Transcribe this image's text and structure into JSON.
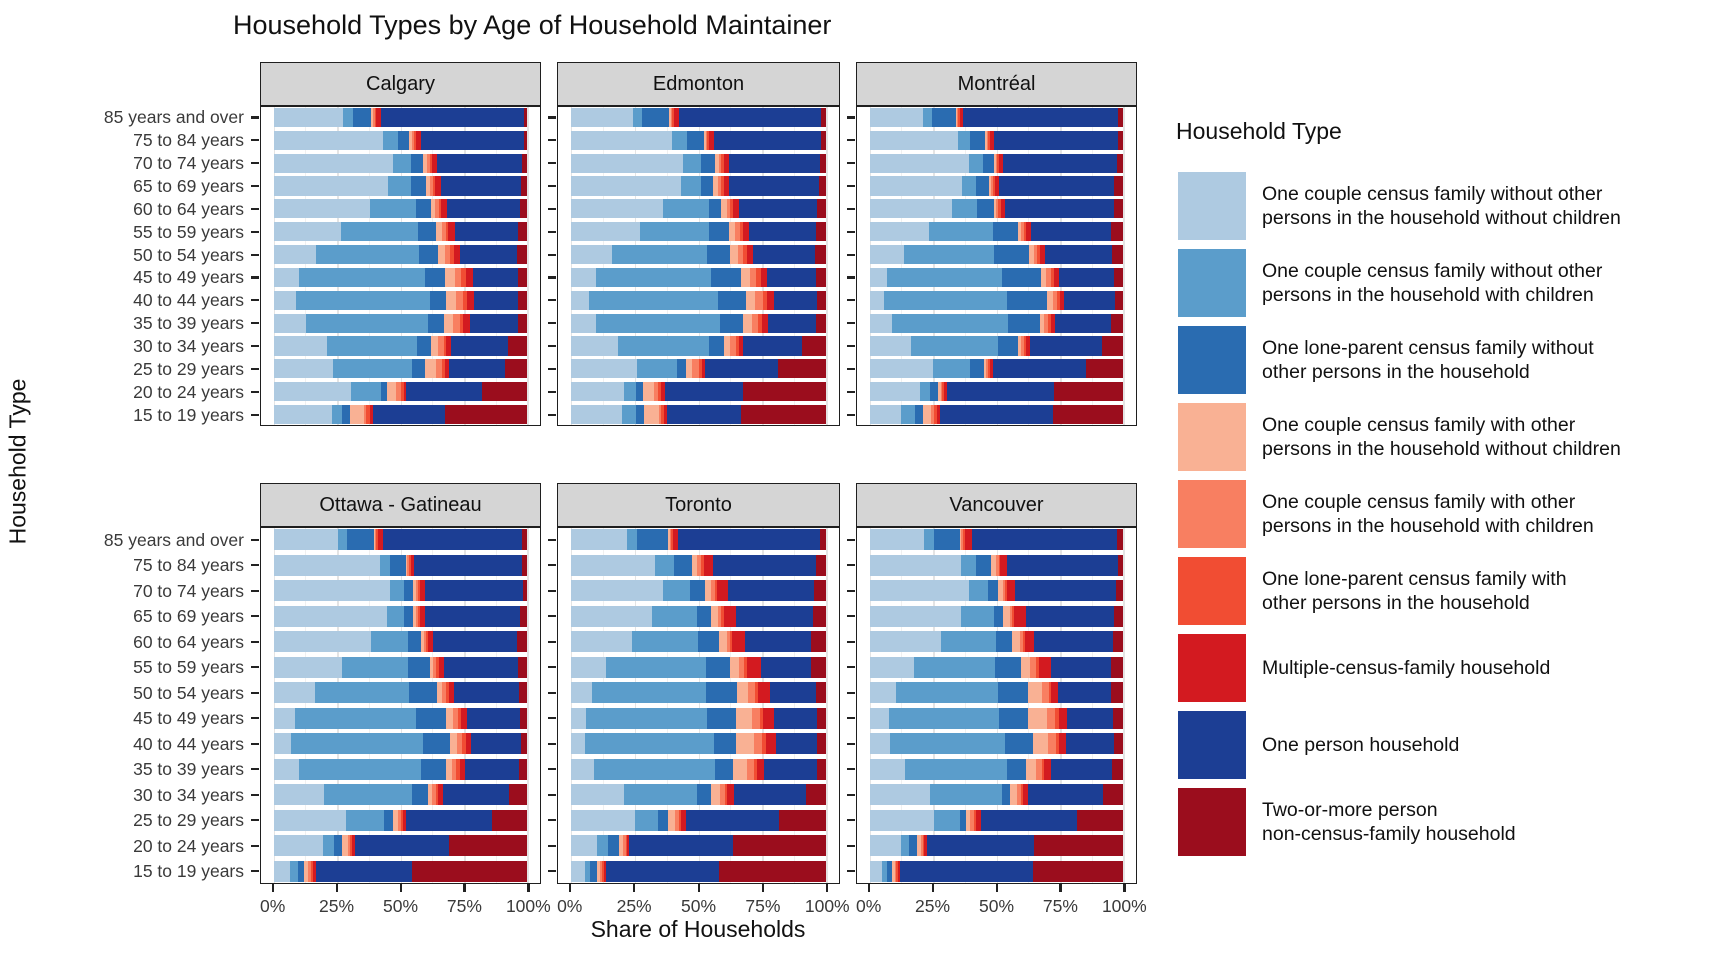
{
  "title": "Household Types by Age of Household Maintainer",
  "axes": {
    "x_label": "Share of Households",
    "y_label": "Household Type",
    "x_ticks": [
      "0%",
      "25%",
      "50%",
      "75%",
      "100%"
    ]
  },
  "legend": {
    "title": "Household Type",
    "entries": [
      {
        "label": "One couple census family without other\npersons in the household without children",
        "color": "#aecae1"
      },
      {
        "label": "One couple census family without other\npersons in the household with children",
        "color": "#5b9dcb"
      },
      {
        "label": "One lone-parent census family without\nother persons in the household",
        "color": "#2a6cb1"
      },
      {
        "label": "One couple census family with other\npersons in the household without children",
        "color": "#f9b194"
      },
      {
        "label": "One couple census family with other\npersons in the household with children",
        "color": "#f87f61"
      },
      {
        "label": "One lone-parent census family with\nother persons in the household",
        "color": "#f14d33"
      },
      {
        "label": "Multiple-census-family household",
        "color": "#d31a20"
      },
      {
        "label": "One person household",
        "color": "#1c3e94"
      },
      {
        "label": "Two-or-more person\nnon-census-family household",
        "color": "#9b0d1d"
      }
    ]
  },
  "chart_data": {
    "type": "bar",
    "stacked": true,
    "orientation": "horizontal",
    "unit": "percent of households (each bar sums to 100)",
    "xlim": [
      0,
      100
    ],
    "grid": "vertical major at 0/25/50/75/100, minor at 12.5 steps",
    "legend_position": "right",
    "facet_grid": [
      [
        "Calgary",
        "Edmonton",
        "Montréal"
      ],
      [
        "Ottawa - Gatineau",
        "Toronto",
        "Vancouver"
      ]
    ],
    "age_groups": [
      "85 years and over",
      "75 to 84 years",
      "70 to 74 years",
      "65 to 69 years",
      "60 to 64 years",
      "55 to 59 years",
      "50 to 54 years",
      "45 to 49 years",
      "40 to 44 years",
      "35 to 39 years",
      "30 to 34 years",
      "25 to 29 years",
      "20 to 24 years",
      "15 to 19 years"
    ],
    "series_names": [
      "One couple census family without other persons in the household without children",
      "One couple census family without other persons in the household with children",
      "One lone-parent census family without other persons in the household",
      "One couple census family with other persons in the household without children",
      "One couple census family with other persons in the household with children",
      "One lone-parent census family with other persons in the household",
      "Multiple-census-family household",
      "One person household",
      "Two-or-more person non-census-family household"
    ],
    "values": {
      "Calgary": [
        [
          27.5,
          3.7,
          7.3,
          0.7,
          0.6,
          0.7,
          2.0,
          56.0,
          1.5
        ],
        [
          43.0,
          6.0,
          4.5,
          1.0,
          0.8,
          0.7,
          2.0,
          40.5,
          1.5
        ],
        [
          47.0,
          7.0,
          5.0,
          1.5,
          1.0,
          0.8,
          2.0,
          33.7,
          2.0
        ],
        [
          45.0,
          9.0,
          6.0,
          1.5,
          1.2,
          0.9,
          2.2,
          31.7,
          2.5
        ],
        [
          38.0,
          18.0,
          6.0,
          1.8,
          1.3,
          0.9,
          2.3,
          28.7,
          3.0
        ],
        [
          26.5,
          30.5,
          7.0,
          2.2,
          1.7,
          1.0,
          2.6,
          24.7,
          3.8
        ],
        [
          16.8,
          40.5,
          7.5,
          2.6,
          2.2,
          1.3,
          2.6,
          22.4,
          4.1
        ],
        [
          10.0,
          49.5,
          8.0,
          3.9,
          2.6,
          1.7,
          2.8,
          17.7,
          3.8
        ],
        [
          9.0,
          52.5,
          6.5,
          3.9,
          2.8,
          1.7,
          2.6,
          17.5,
          3.5
        ],
        [
          12.7,
          48.2,
          6.4,
          3.5,
          2.5,
          1.5,
          2.5,
          19.2,
          3.5
        ],
        [
          21.0,
          35.4,
          5.8,
          2.6,
          2.2,
          1.0,
          1.9,
          22.5,
          7.6
        ],
        [
          23.6,
          31.1,
          5.1,
          4.2,
          2.3,
          1.3,
          1.5,
          22.2,
          8.7
        ],
        [
          30.7,
          11.6,
          2.5,
          3.5,
          1.9,
          1.1,
          1.0,
          29.8,
          17.9
        ],
        [
          23.0,
          4.0,
          3.0,
          5.5,
          1.0,
          1.5,
          1.0,
          28.6,
          32.4
        ]
      ],
      "Edmonton": [
        [
          24.5,
          3.5,
          10.5,
          0.7,
          0.6,
          0.7,
          2.0,
          55.5,
          2.0
        ],
        [
          39.5,
          6.0,
          6.5,
          0.8,
          0.7,
          0.8,
          1.7,
          42.0,
          2.0
        ],
        [
          44.0,
          7.0,
          5.5,
          1.5,
          1.0,
          1.0,
          2.0,
          35.5,
          2.5
        ],
        [
          43.0,
          8.0,
          4.5,
          2.0,
          1.5,
          1.0,
          2.0,
          35.0,
          3.0
        ],
        [
          36.0,
          18.0,
          5.0,
          2.0,
          1.5,
          1.2,
          2.3,
          30.5,
          3.5
        ],
        [
          27.0,
          27.0,
          8.0,
          2.3,
          1.8,
          1.2,
          2.5,
          26.2,
          4.0
        ],
        [
          16.0,
          37.5,
          9.0,
          2.8,
          2.2,
          1.4,
          2.6,
          24.0,
          4.5
        ],
        [
          10.0,
          45.0,
          11.5,
          3.5,
          2.7,
          1.6,
          2.7,
          19.0,
          4.0
        ],
        [
          7.0,
          50.5,
          11.0,
          3.8,
          2.9,
          1.7,
          2.6,
          17.0,
          3.5
        ],
        [
          10.0,
          48.5,
          9.0,
          3.3,
          2.5,
          1.5,
          2.2,
          19.0,
          4.0
        ],
        [
          18.5,
          35.5,
          6.0,
          2.5,
          2.0,
          1.2,
          1.8,
          23.0,
          9.5
        ],
        [
          26.0,
          15.5,
          3.5,
          2.6,
          2.5,
          1.2,
          1.4,
          28.4,
          18.9
        ],
        [
          21.0,
          4.5,
          3.0,
          4.0,
          1.8,
          1.2,
          1.3,
          30.5,
          32.7
        ],
        [
          20.0,
          5.5,
          3.0,
          6.0,
          1.0,
          1.2,
          1.0,
          29.0,
          33.3
        ]
      ],
      "Montréal": [
        [
          21.0,
          3.5,
          9.5,
          0.5,
          0.5,
          0.6,
          1.4,
          61.0,
          2.0
        ],
        [
          35.0,
          4.5,
          6.0,
          0.6,
          0.5,
          0.7,
          1.7,
          49.0,
          2.0
        ],
        [
          39.0,
          5.5,
          4.5,
          0.7,
          0.6,
          0.7,
          1.6,
          45.0,
          2.4
        ],
        [
          36.5,
          5.5,
          5.0,
          0.8,
          0.7,
          0.8,
          1.7,
          45.5,
          3.5
        ],
        [
          32.5,
          10.0,
          6.5,
          1.0,
          0.8,
          0.9,
          1.8,
          43.0,
          3.5
        ],
        [
          23.5,
          25.0,
          10.0,
          1.3,
          1.0,
          1.0,
          2.0,
          31.5,
          4.7
        ],
        [
          13.5,
          35.5,
          14.0,
          1.6,
          1.3,
          1.1,
          2.0,
          26.5,
          4.5
        ],
        [
          7.0,
          45.0,
          15.5,
          2.2,
          1.8,
          1.3,
          2.0,
          21.5,
          3.7
        ],
        [
          5.5,
          48.5,
          16.0,
          2.1,
          1.7,
          1.2,
          1.8,
          20.0,
          3.2
        ],
        [
          9.0,
          45.5,
          12.5,
          1.8,
          1.5,
          1.1,
          1.7,
          22.0,
          4.9
        ],
        [
          16.5,
          34.0,
          8.0,
          1.2,
          1.0,
          0.9,
          1.5,
          28.5,
          8.4
        ],
        [
          25.0,
          14.5,
          5.5,
          0.9,
          0.8,
          0.8,
          1.2,
          36.5,
          14.8
        ],
        [
          20.0,
          4.0,
          3.0,
          1.0,
          0.7,
          0.8,
          1.0,
          42.0,
          27.5
        ],
        [
          12.5,
          5.5,
          3.0,
          3.3,
          1.1,
          1.2,
          1.0,
          44.7,
          27.7
        ]
      ],
      "Ottawa - Gatineau": [
        [
          25.5,
          3.5,
          10.5,
          0.5,
          0.5,
          0.6,
          1.9,
          55.0,
          2.0
        ],
        [
          42.0,
          4.0,
          6.0,
          0.7,
          0.6,
          0.7,
          1.5,
          42.5,
          2.0
        ],
        [
          46.0,
          5.5,
          3.5,
          1.0,
          0.8,
          0.8,
          2.0,
          38.5,
          1.9
        ],
        [
          44.5,
          7.0,
          3.5,
          1.0,
          0.8,
          0.8,
          2.0,
          37.5,
          2.9
        ],
        [
          38.5,
          14.5,
          5.0,
          1.1,
          0.9,
          0.9,
          2.1,
          33.0,
          4.0
        ],
        [
          27.0,
          26.0,
          8.5,
          1.4,
          1.1,
          1.0,
          2.0,
          29.2,
          3.8
        ],
        [
          16.5,
          37.0,
          11.0,
          1.9,
          1.5,
          1.2,
          2.2,
          25.5,
          3.2
        ],
        [
          8.5,
          47.5,
          12.0,
          2.5,
          2.0,
          1.4,
          2.5,
          20.6,
          3.0
        ],
        [
          7.0,
          52.0,
          10.5,
          2.6,
          2.1,
          1.5,
          2.2,
          19.6,
          2.5
        ],
        [
          10.0,
          48.0,
          10.0,
          2.2,
          1.8,
          1.3,
          2.2,
          21.3,
          3.2
        ],
        [
          20.0,
          34.5,
          6.5,
          1.6,
          1.3,
          1.0,
          1.9,
          25.8,
          7.4
        ],
        [
          28.5,
          15.0,
          3.5,
          1.9,
          1.3,
          0.8,
          1.0,
          34.0,
          14.0
        ],
        [
          19.5,
          4.5,
          3.0,
          2.5,
          0.8,
          0.8,
          1.0,
          37.2,
          30.7
        ],
        [
          6.5,
          3.0,
          2.5,
          1.7,
          1.0,
          1.0,
          1.0,
          37.7,
          45.6
        ]
      ],
      "Toronto": [
        [
          22.0,
          4.0,
          12.0,
          0.7,
          0.6,
          0.8,
          2.0,
          55.4,
          2.5
        ],
        [
          33.0,
          7.5,
          7.0,
          2.0,
          1.5,
          1.0,
          3.5,
          40.5,
          4.0
        ],
        [
          36.0,
          10.5,
          6.0,
          2.5,
          1.3,
          1.0,
          4.2,
          33.5,
          5.0
        ],
        [
          32.0,
          17.5,
          5.5,
          2.6,
          1.3,
          0.9,
          5.0,
          30.0,
          5.2
        ],
        [
          24.0,
          26.0,
          8.0,
          3.0,
          1.3,
          0.9,
          5.0,
          26.0,
          5.8
        ],
        [
          14.0,
          39.0,
          9.5,
          3.5,
          2.0,
          1.0,
          5.5,
          19.5,
          6.0
        ],
        [
          8.5,
          44.5,
          12.0,
          4.4,
          2.6,
          1.3,
          4.7,
          18.0,
          4.0
        ],
        [
          6.0,
          47.5,
          11.0,
          6.5,
          3.0,
          1.3,
          4.3,
          16.7,
          3.7
        ],
        [
          5.5,
          50.5,
          8.7,
          7.0,
          3.2,
          1.7,
          3.9,
          16.0,
          3.5
        ],
        [
          9.0,
          47.5,
          7.0,
          5.5,
          2.6,
          1.3,
          2.6,
          20.8,
          3.7
        ],
        [
          21.0,
          28.5,
          5.5,
          3.6,
          1.8,
          0.8,
          2.8,
          28.0,
          8.0
        ],
        [
          25.0,
          9.0,
          4.0,
          2.8,
          1.5,
          0.8,
          2.2,
          36.2,
          18.5
        ],
        [
          10.5,
          4.0,
          4.5,
          1.5,
          1.0,
          0.5,
          1.0,
          40.5,
          36.5
        ],
        [
          5.5,
          2.2,
          2.6,
          1.3,
          0.7,
          0.8,
          0.9,
          44.1,
          41.9
        ]
      ],
      "Vancouver": [
        [
          21.5,
          4.0,
          10.0,
          0.7,
          0.6,
          0.8,
          2.7,
          57.2,
          2.5
        ],
        [
          36.0,
          6.0,
          6.0,
          1.7,
          1.2,
          0.6,
          2.6,
          43.9,
          2.0
        ],
        [
          39.0,
          7.5,
          4.0,
          2.0,
          1.0,
          0.6,
          3.4,
          39.7,
          2.8
        ],
        [
          36.0,
          13.0,
          3.5,
          2.8,
          1.0,
          0.7,
          4.5,
          35.0,
          3.5
        ],
        [
          28.0,
          22.0,
          6.0,
          3.1,
          1.3,
          0.8,
          3.5,
          31.3,
          4.0
        ],
        [
          17.5,
          32.0,
          10.0,
          3.9,
          2.2,
          1.0,
          4.9,
          23.7,
          4.8
        ],
        [
          10.5,
          40.0,
          12.0,
          5.4,
          2.6,
          1.0,
          2.8,
          21.0,
          4.7
        ],
        [
          7.5,
          43.5,
          11.5,
          7.3,
          3.2,
          1.5,
          3.3,
          18.2,
          4.0
        ],
        [
          8.0,
          45.5,
          11.0,
          5.9,
          3.1,
          1.3,
          2.6,
          19.0,
          3.6
        ],
        [
          14.0,
          40.0,
          7.5,
          4.1,
          2.3,
          1.0,
          2.6,
          24.1,
          4.4
        ],
        [
          24.0,
          28.0,
          3.5,
          2.6,
          1.6,
          0.7,
          1.9,
          29.8,
          7.9
        ],
        [
          25.5,
          10.0,
          2.6,
          1.5,
          1.5,
          0.8,
          2.2,
          37.8,
          18.1
        ],
        [
          12.5,
          3.0,
          3.0,
          1.9,
          0.7,
          0.4,
          1.0,
          42.2,
          35.3
        ],
        [
          5.0,
          1.8,
          2.0,
          1.2,
          0.6,
          0.7,
          0.8,
          52.5,
          35.4
        ]
      ]
    }
  }
}
